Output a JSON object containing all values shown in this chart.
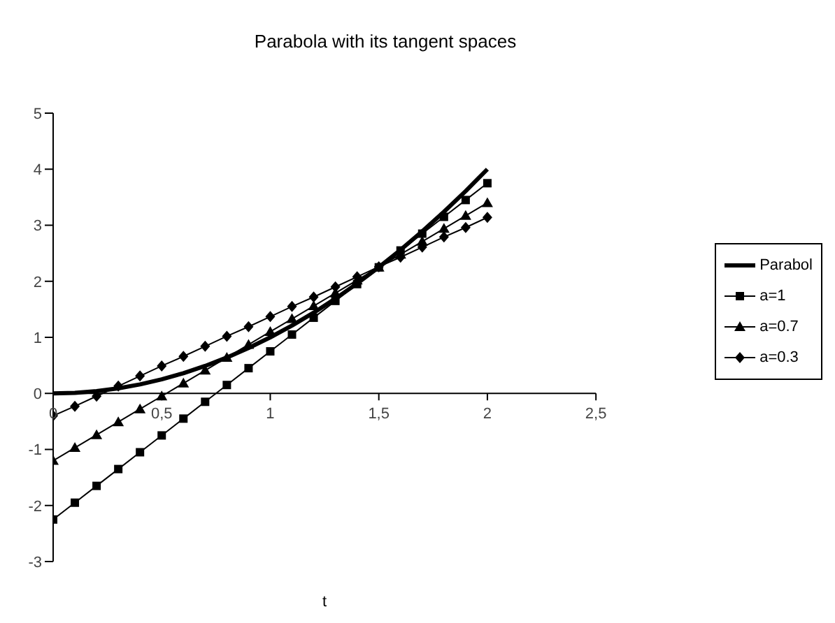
{
  "chart_data": {
    "type": "line",
    "title": "Parabola with its tangent spaces",
    "xlabel": "t",
    "x": [
      0,
      0.1,
      0.2,
      0.3,
      0.4,
      0.5,
      0.6,
      0.7,
      0.8,
      0.9,
      1,
      1.1,
      1.2,
      1.3,
      1.4,
      1.5,
      1.6,
      1.7,
      1.8,
      1.9,
      2
    ],
    "series": [
      {
        "name": "Parabol",
        "color": "#000000",
        "marker": "none",
        "values": [
          0,
          0.01,
          0.04,
          0.09,
          0.16,
          0.25,
          0.36,
          0.49,
          0.64,
          0.81,
          1,
          1.21,
          1.44,
          1.69,
          1.96,
          2.25,
          2.56,
          2.89,
          3.24,
          3.61,
          4
        ]
      },
      {
        "name": "a=1",
        "color": "#000000",
        "marker": "square",
        "values": [
          -2.25,
          -1.95,
          -1.65,
          -1.35,
          -1.05,
          -0.75,
          -0.45,
          -0.15,
          0.15,
          0.45,
          0.75,
          1.05,
          1.35,
          1.65,
          1.95,
          2.25,
          2.55,
          2.85,
          3.15,
          3.45,
          3.75
        ]
      },
      {
        "name": "a=0.7",
        "color": "#000000",
        "marker": "triangle",
        "values": [
          -1.2,
          -0.97,
          -0.74,
          -0.51,
          -0.28,
          -0.05,
          0.18,
          0.41,
          0.64,
          0.87,
          1.1,
          1.33,
          1.56,
          1.79,
          2.02,
          2.25,
          2.48,
          2.71,
          2.94,
          3.17,
          3.4
        ]
      },
      {
        "name": "a=0.3",
        "color": "#000000",
        "marker": "diamond",
        "values": [
          -0.4,
          -0.23,
          -0.05,
          0.13,
          0.31,
          0.49,
          0.66,
          0.84,
          1.02,
          1.19,
          1.37,
          1.55,
          1.72,
          1.9,
          2.08,
          2.26,
          2.43,
          2.61,
          2.79,
          2.96,
          3.14
        ]
      }
    ],
    "xlim": [
      0,
      2.5
    ],
    "xticks": [
      0,
      {
        "value": 0.5,
        "label": "0,5"
      },
      1,
      {
        "value": 1.5,
        "label": "1,5"
      },
      2,
      {
        "value": 2.5,
        "label": "2,5"
      }
    ],
    "ylim": [
      -3,
      5
    ],
    "yticks": [
      -3,
      -2,
      -1,
      0,
      1,
      2,
      3,
      4,
      5
    ],
    "grid": false,
    "legend": "right"
  }
}
